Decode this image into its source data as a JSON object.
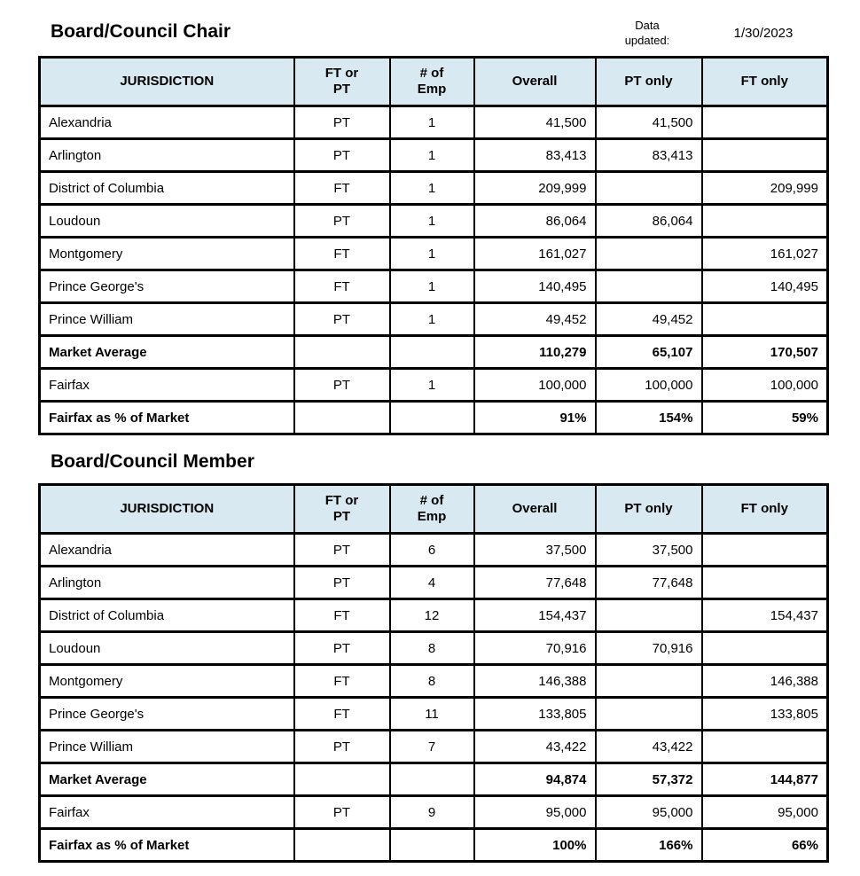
{
  "colors": {
    "header_bg": "#d9e9f1",
    "average_bg": "#eaeedd",
    "percent_bg": "#fbe5d3",
    "border": "#000000",
    "page_bg": "#ffffff"
  },
  "data_updated": {
    "label": "Data\nupdated:",
    "date": "1/30/2023"
  },
  "columns": [
    "JURISDICTION",
    "FT or\nPT",
    "# of\nEmp",
    "Overall",
    "PT only",
    "FT only"
  ],
  "tables": [
    {
      "title": "Board/Council Chair",
      "rows": [
        {
          "jurisdiction": "Alexandria",
          "ft_pt": "PT",
          "num_emp": "1",
          "overall": "41,500",
          "pt_only": "41,500",
          "ft_only": "",
          "style": "normal"
        },
        {
          "jurisdiction": "Arlington",
          "ft_pt": "PT",
          "num_emp": "1",
          "overall": "83,413",
          "pt_only": "83,413",
          "ft_only": "",
          "style": "normal"
        },
        {
          "jurisdiction": "District of Columbia",
          "ft_pt": "FT",
          "num_emp": "1",
          "overall": "209,999",
          "pt_only": "",
          "ft_only": "209,999",
          "style": "normal"
        },
        {
          "jurisdiction": "Loudoun",
          "ft_pt": "PT",
          "num_emp": "1",
          "overall": "86,064",
          "pt_only": "86,064",
          "ft_only": "",
          "style": "normal"
        },
        {
          "jurisdiction": "Montgomery",
          "ft_pt": "FT",
          "num_emp": "1",
          "overall": "161,027",
          "pt_only": "",
          "ft_only": "161,027",
          "style": "normal"
        },
        {
          "jurisdiction": "Prince George's",
          "ft_pt": "FT",
          "num_emp": "1",
          "overall": "140,495",
          "pt_only": "",
          "ft_only": "140,495",
          "style": "normal"
        },
        {
          "jurisdiction": "Prince William",
          "ft_pt": "PT",
          "num_emp": "1",
          "overall": "49,452",
          "pt_only": "49,452",
          "ft_only": "",
          "style": "normal"
        },
        {
          "jurisdiction": "Market Average",
          "ft_pt": "",
          "num_emp": "",
          "overall": "110,279",
          "pt_only": "65,107",
          "ft_only": "170,507",
          "style": "average"
        },
        {
          "jurisdiction": "Fairfax",
          "ft_pt": "PT",
          "num_emp": "1",
          "overall": "100,000",
          "pt_only": "100,000",
          "ft_only": "100,000",
          "style": "normal"
        },
        {
          "jurisdiction": "Fairfax as % of Market",
          "ft_pt": "",
          "num_emp": "",
          "overall": "91%",
          "pt_only": "154%",
          "ft_only": "59%",
          "style": "percent"
        }
      ]
    },
    {
      "title": "Board/Council Member",
      "rows": [
        {
          "jurisdiction": "Alexandria",
          "ft_pt": "PT",
          "num_emp": "6",
          "overall": "37,500",
          "pt_only": "37,500",
          "ft_only": "",
          "style": "normal"
        },
        {
          "jurisdiction": "Arlington",
          "ft_pt": "PT",
          "num_emp": "4",
          "overall": "77,648",
          "pt_only": "77,648",
          "ft_only": "",
          "style": "normal"
        },
        {
          "jurisdiction": "District of Columbia",
          "ft_pt": "FT",
          "num_emp": "12",
          "overall": "154,437",
          "pt_only": "",
          "ft_only": "154,437",
          "style": "normal"
        },
        {
          "jurisdiction": "Loudoun",
          "ft_pt": "PT",
          "num_emp": "8",
          "overall": "70,916",
          "pt_only": "70,916",
          "ft_only": "",
          "style": "normal"
        },
        {
          "jurisdiction": "Montgomery",
          "ft_pt": "FT",
          "num_emp": "8",
          "overall": "146,388",
          "pt_only": "",
          "ft_only": "146,388",
          "style": "normal"
        },
        {
          "jurisdiction": "Prince George's",
          "ft_pt": "FT",
          "num_emp": "11",
          "overall": "133,805",
          "pt_only": "",
          "ft_only": "133,805",
          "style": "normal"
        },
        {
          "jurisdiction": "Prince William",
          "ft_pt": "PT",
          "num_emp": "7",
          "overall": "43,422",
          "pt_only": "43,422",
          "ft_only": "",
          "style": "normal"
        },
        {
          "jurisdiction": "Market Average",
          "ft_pt": "",
          "num_emp": "",
          "overall": "94,874",
          "pt_only": "57,372",
          "ft_only": "144,877",
          "style": "average"
        },
        {
          "jurisdiction": "Fairfax",
          "ft_pt": "PT",
          "num_emp": "9",
          "overall": "95,000",
          "pt_only": "95,000",
          "ft_only": "95,000",
          "style": "normal"
        },
        {
          "jurisdiction": "Fairfax as % of Market",
          "ft_pt": "",
          "num_emp": "",
          "overall": "100%",
          "pt_only": "166%",
          "ft_only": "66%",
          "style": "percent"
        }
      ]
    }
  ]
}
